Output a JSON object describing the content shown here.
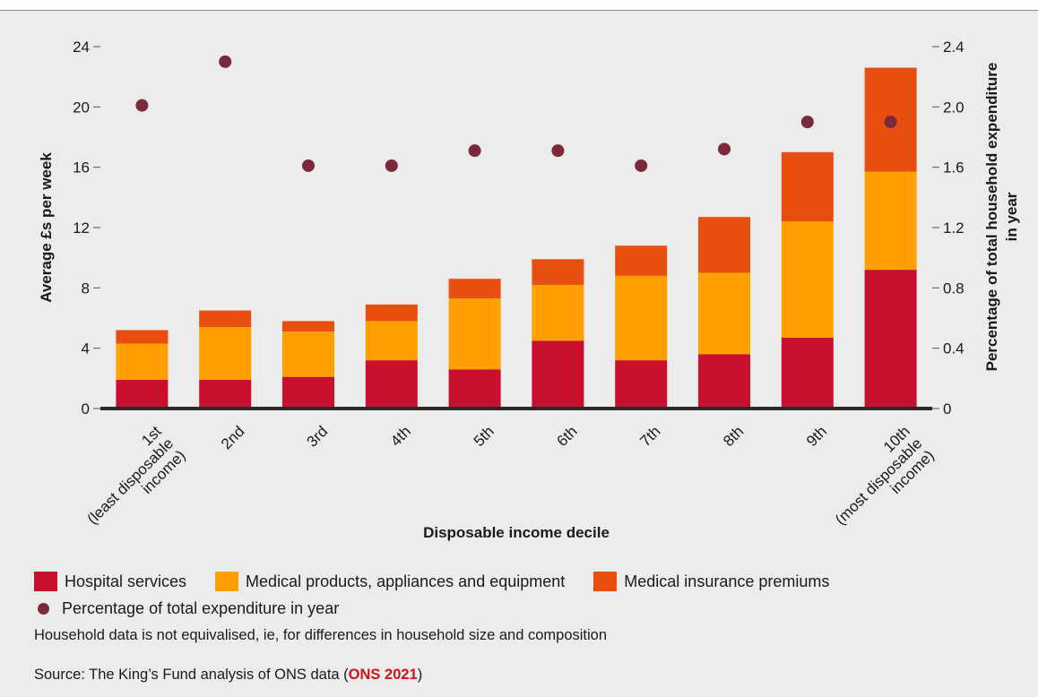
{
  "chart_data": {
    "type": "bar",
    "stacked": true,
    "categories": [
      "1st\n(least disposable\nincome)",
      "2nd",
      "3rd",
      "4th",
      "5th",
      "6th",
      "7th",
      "8th",
      "9th",
      "10th\n(most disposable\nincome)"
    ],
    "series": [
      {
        "name": "Hospital services",
        "color": "#c8102e",
        "values": [
          1.9,
          1.9,
          2.1,
          3.2,
          2.6,
          4.5,
          3.2,
          3.6,
          4.7,
          9.2
        ]
      },
      {
        "name": "Medical products, appliances and equipment",
        "color": "#ffa000",
        "values": [
          2.4,
          3.5,
          3.0,
          2.6,
          4.7,
          3.7,
          5.6,
          5.4,
          7.7,
          6.5
        ]
      },
      {
        "name": "Medical insurance premiums",
        "color": "#e84e0f",
        "values": [
          0.9,
          1.1,
          0.7,
          1.1,
          1.3,
          1.7,
          2.0,
          3.7,
          4.6,
          6.9
        ]
      }
    ],
    "secondary_series": {
      "name": "Percentage of total expenditure in year",
      "type": "scatter",
      "color": "#7a2a3a",
      "values": [
        2.01,
        2.3,
        1.61,
        1.61,
        1.71,
        1.71,
        1.61,
        1.72,
        1.9,
        1.9
      ]
    },
    "xlabel": "Disposable income decile",
    "ylabel": "Average £s per week",
    "y2label": "Percentage of total household expenditure\nin year",
    "ylim": [
      0,
      24
    ],
    "y2lim": [
      0,
      2.4
    ],
    "yticks": [
      "0",
      "4",
      "8",
      "12",
      "16",
      "20",
      "24"
    ],
    "y2ticks": [
      "0",
      "0.4",
      "0.8",
      "1.2",
      "1.6",
      "2.0",
      "2.4"
    ],
    "grid": false,
    "legend_position": "bottom"
  },
  "notes": {
    "equivalised": "Household data is not equivalised, ie, for differences in household size and composition",
    "source_prefix": "Source: The King’s Fund analysis of ONS data (",
    "source_link": "ONS 2021",
    "source_suffix": ")"
  }
}
